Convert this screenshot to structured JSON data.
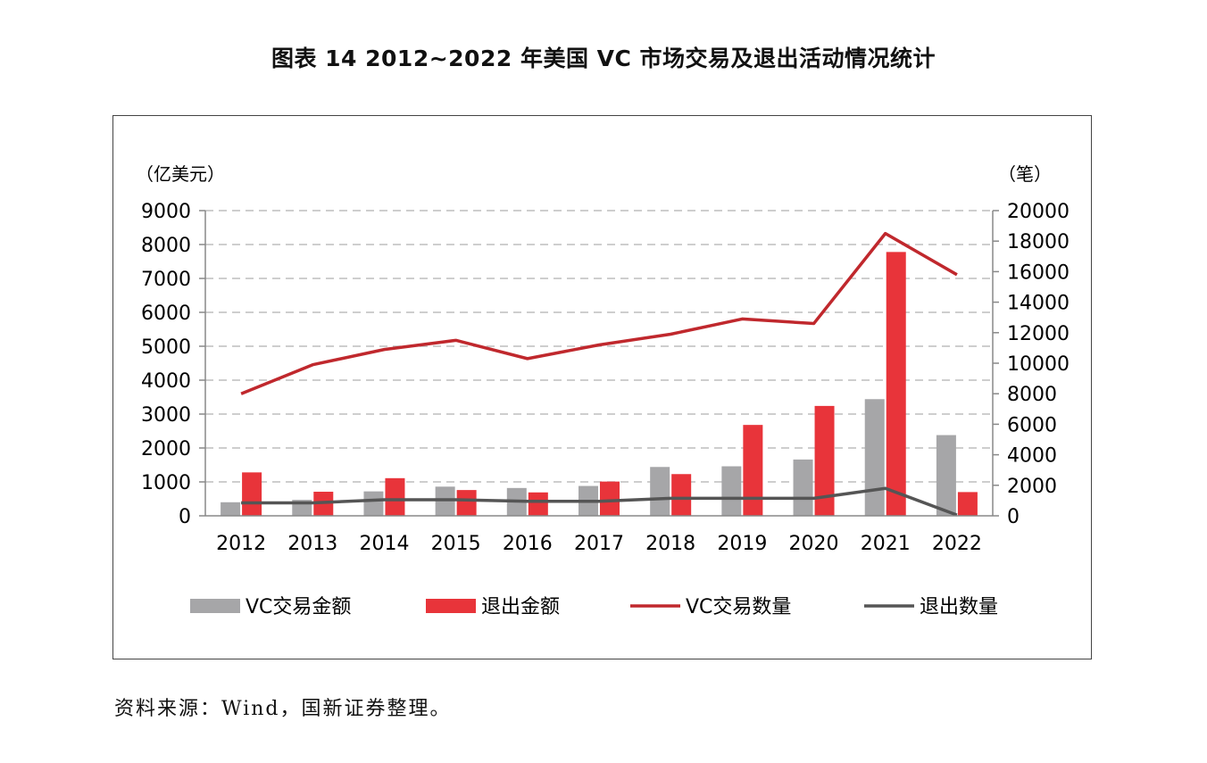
{
  "title": "图表 14  2012~2022 年美国 VC 市场交易及退出活动情况统计",
  "source": "资料来源：Wind，国新证券整理。",
  "chart_data": {
    "type": "bar+line",
    "categories": [
      "2012",
      "2013",
      "2014",
      "2015",
      "2016",
      "2017",
      "2018",
      "2019",
      "2020",
      "2021",
      "2022"
    ],
    "y_left": {
      "unit": "（亿美元）",
      "range": [
        0,
        9000
      ],
      "ticks": [
        0,
        1000,
        2000,
        3000,
        4000,
        5000,
        6000,
        7000,
        8000,
        9000
      ]
    },
    "y_right": {
      "unit": "（笔）",
      "range": [
        0,
        20000
      ],
      "ticks": [
        0,
        2000,
        4000,
        6000,
        8000,
        10000,
        12000,
        14000,
        16000,
        18000,
        20000
      ]
    },
    "grid": "horizontal-dashed",
    "legend_position": "bottom",
    "series": [
      {
        "name": "VC交易金额",
        "kind": "bar",
        "axis": "left",
        "color": "#a6a6a8",
        "values": [
          400,
          470,
          720,
          860,
          820,
          880,
          1440,
          1460,
          1660,
          3440,
          2380
        ]
      },
      {
        "name": "退出金额",
        "kind": "bar",
        "axis": "left",
        "color": "#e8343a",
        "values": [
          1280,
          710,
          1110,
          760,
          690,
          1010,
          1230,
          2680,
          3240,
          7780,
          700
        ]
      },
      {
        "name": "VC交易数量",
        "kind": "line",
        "axis": "right",
        "color": "#c0282d",
        "values": [
          8000,
          9900,
          10900,
          11500,
          10300,
          11200,
          11900,
          12900,
          12600,
          18500,
          15800
        ]
      },
      {
        "name": "退出数量",
        "kind": "line",
        "axis": "right",
        "color": "#555555",
        "values": [
          850,
          850,
          1050,
          1050,
          950,
          950,
          1150,
          1150,
          1150,
          1800,
          50
        ]
      }
    ]
  }
}
